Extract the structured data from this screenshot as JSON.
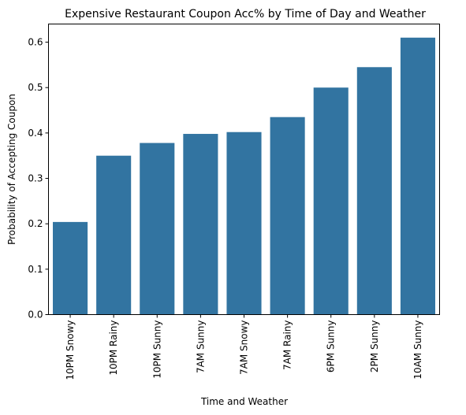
{
  "chart_data": {
    "type": "bar",
    "title": "Expensive Restaurant Coupon Acc% by Time of Day and Weather",
    "xlabel": "Time and Weather",
    "ylabel": "Probability of Accepting Coupon",
    "categories": [
      "10PM Snowy",
      "10PM Rainy",
      "10PM Sunny",
      "7AM Sunny",
      "7AM Snowy",
      "7AM Rainy",
      "6PM Sunny",
      "2PM Sunny",
      "10AM Sunny"
    ],
    "values": [
      0.204,
      0.35,
      0.378,
      0.398,
      0.402,
      0.435,
      0.5,
      0.545,
      0.61
    ],
    "ylim": [
      0,
      0.64
    ],
    "yticks": [
      "0.0",
      "0.1",
      "0.2",
      "0.3",
      "0.4",
      "0.5",
      "0.6"
    ],
    "grid": false,
    "bar_color": "#3274a1"
  }
}
